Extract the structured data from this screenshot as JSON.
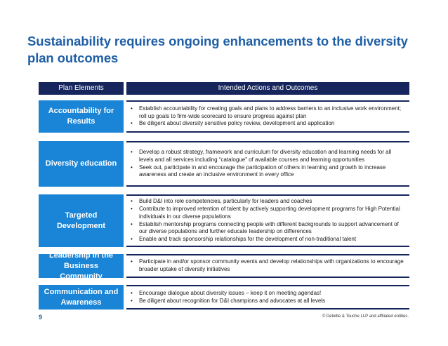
{
  "slide": {
    "title": "Sustainability requires ongoing enhancements to the diversity plan outcomes",
    "col_left_header": "Plan Elements",
    "col_right_header": "Intended Actions and Outcomes",
    "rows": [
      {
        "label": "Accountability for Results",
        "bullets": [
          "Establish accountability for creating goals and plans to address barriers to an inclusive work environment; roll up goals to firm-wide scorecard to ensure progress against plan",
          "Be diligent about diversity sensitive policy review, development and application"
        ]
      },
      {
        "label": "Diversity education",
        "bullets": [
          "Develop a robust strategy, framework and curriculum for diversity education and learning needs for all levels and all services including “catalogue” of available courses and learning opportunities",
          "Seek out, participate in and encourage the participation of others in learning and growth to increase awareness and create an inclusive environment in every office"
        ]
      },
      {
        "label": "Targeted Development",
        "bullets": [
          "Build D&I into role competencies, particularly for leaders and coaches",
          "Contribute to improved retention of talent by actively supporting development programs for High Potential individuals in our diverse populations",
          "Establish mentorship programs connecting people with different backgrounds to support advancement of our diverse populations and further educate leadership on differences",
          "Enable and track sponsorship relationships  for the development of non-traditional talent"
        ]
      },
      {
        "label": "Leadership in the Business Community",
        "bullets": [
          "Participate in and/or sponsor community events and develop relationships with organizations to encourage broader uptake of diversity initiatives"
        ]
      },
      {
        "label": "Communication and Awareness",
        "bullets": [
          "Encourage dialogue about diversity issues – keep it on meeting agendas!",
          "Be diligent about recognition for D&I champions and advocates at all levels"
        ]
      }
    ],
    "page_number": "9",
    "copyright": "© Deloitte & Touche LLP and affiliated entities."
  }
}
